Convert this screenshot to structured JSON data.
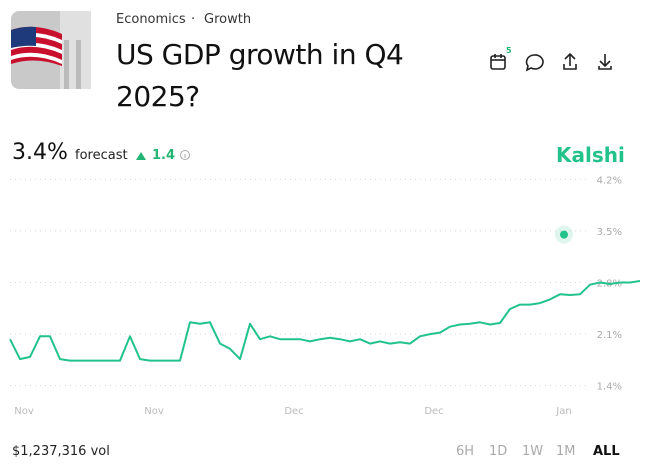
{
  "header": {
    "category": "Economics",
    "subcategory": "Growth",
    "title": "US GDP growth in Q4 2025?",
    "calendar_badge": "5"
  },
  "stat": {
    "value": "3.4%",
    "label": "forecast",
    "change": "1.4"
  },
  "brand": "Kalshi",
  "chart_data": {
    "type": "line",
    "categories": [
      null,
      "Nov",
      null,
      null,
      null,
      null,
      null,
      null,
      null,
      null,
      null,
      null,
      null,
      null,
      "Nov",
      null,
      null,
      null,
      null,
      null,
      null,
      null,
      null,
      null,
      null,
      null,
      null,
      null,
      "Dec",
      null,
      null,
      null,
      null,
      null,
      null,
      null,
      null,
      null,
      null,
      null,
      null,
      null,
      "Dec",
      null,
      null,
      null,
      null,
      null,
      null,
      null,
      null,
      null,
      null,
      null,
      null,
      "Jan",
      null,
      null,
      null,
      null,
      null,
      null,
      null,
      null
    ],
    "series": [
      {
        "name": "Forecast",
        "color": "#22c38a",
        "values": [
          2.03,
          1.76,
          1.79,
          2.07,
          2.07,
          1.76,
          1.74,
          1.74,
          1.74,
          1.74,
          1.74,
          1.74,
          2.07,
          1.76,
          1.74,
          1.74,
          1.74,
          1.74,
          2.26,
          2.24,
          2.26,
          1.97,
          1.9,
          1.76,
          2.24,
          2.03,
          2.07,
          2.03,
          2.03,
          2.03,
          2.0,
          2.03,
          2.05,
          2.03,
          2.0,
          2.03,
          1.97,
          2.0,
          1.97,
          1.99,
          1.97,
          2.07,
          2.1,
          2.12,
          2.2,
          2.23,
          2.24,
          2.26,
          2.23,
          2.25,
          2.44,
          2.5,
          2.5,
          2.52,
          2.57,
          2.64,
          2.63,
          2.64,
          2.77,
          2.8,
          2.78,
          2.8,
          2.8,
          2.82
        ]
      }
    ],
    "marker_value": 3.45,
    "ylim": [
      1.3,
      4.3
    ],
    "yticks": [
      {
        "value": 1.4,
        "label": "1.4%"
      },
      {
        "value": 2.1,
        "label": "2.1%"
      },
      {
        "value": 2.8,
        "label": "2.8%"
      },
      {
        "value": 3.5,
        "label": "3.5%"
      },
      {
        "value": 4.2,
        "label": "4.2%"
      }
    ],
    "grid": true
  },
  "footer": {
    "volume": "$1,237,316 vol",
    "ranges": [
      "6H",
      "1D",
      "1W",
      "1M",
      "ALL"
    ]
  }
}
